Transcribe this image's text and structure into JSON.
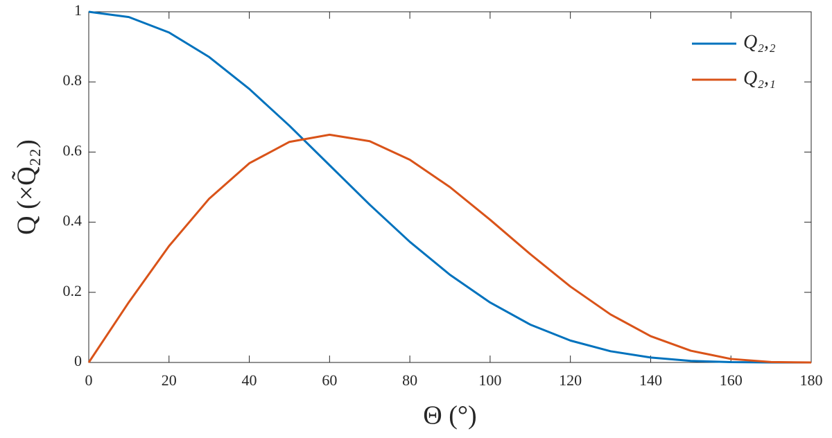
{
  "chart_data": {
    "type": "line",
    "x_label": "Θ (°)",
    "y_label": "Q (×Q̃₂₂)",
    "x": [
      0,
      10,
      20,
      30,
      40,
      50,
      60,
      70,
      80,
      90,
      100,
      110,
      120,
      130,
      140,
      150,
      160,
      170,
      180
    ],
    "series": [
      {
        "name": "Q₂,₂",
        "color": "#0072bd",
        "values": [
          1,
          0.985,
          0.941,
          0.871,
          0.78,
          0.675,
          0.5625,
          0.45,
          0.344,
          0.25,
          0.171,
          0.108,
          0.0625,
          0.032,
          0.014,
          0.0045,
          0.0009,
          0.0001,
          0
        ]
      },
      {
        "name": "Q₂,₁",
        "color": "#d95319",
        "values": [
          0,
          0.172,
          0.332,
          0.467,
          0.568,
          0.629,
          0.6495,
          0.631,
          0.578,
          0.5,
          0.407,
          0.309,
          0.2165,
          0.137,
          0.075,
          0.0335,
          0.01,
          0.0013,
          0
        ]
      }
    ],
    "xlim": [
      0,
      180
    ],
    "xticks": [
      0,
      20,
      40,
      60,
      80,
      100,
      120,
      140,
      160,
      180
    ],
    "ylim": [
      0,
      1
    ],
    "yticks": [
      0,
      0.2,
      0.4,
      0.6,
      0.8,
      1
    ],
    "legend": "upper right"
  }
}
